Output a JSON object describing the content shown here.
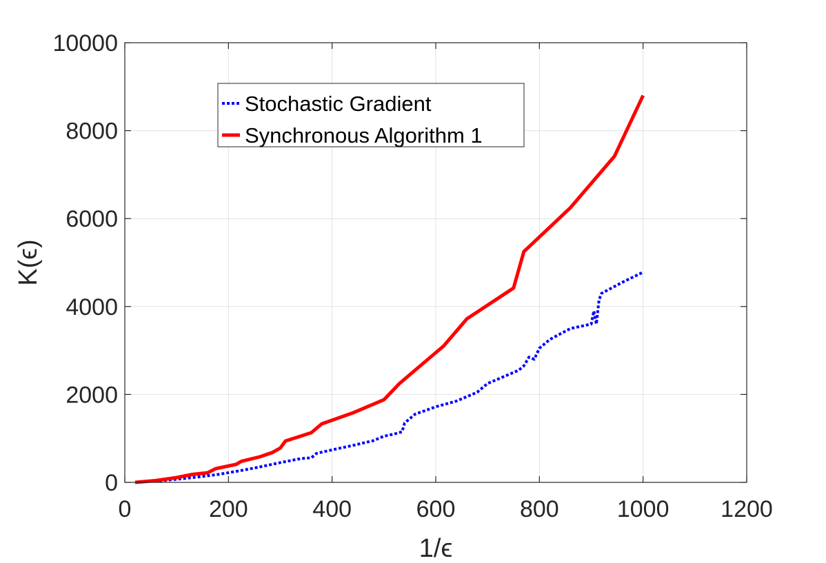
{
  "chart_data": {
    "type": "line",
    "xlabel": "1/ϵ",
    "ylabel": "K(ϵ)",
    "xlim": [
      0,
      1200
    ],
    "ylim": [
      0,
      10000
    ],
    "xticks": [
      "0",
      "200",
      "400",
      "600",
      "800",
      "1000",
      "1200"
    ],
    "yticks": [
      "0",
      "2000",
      "4000",
      "6000",
      "8000",
      "10000"
    ],
    "grid": true,
    "legend_position": "upper-left",
    "series": [
      {
        "name": "Stochastic Gradient",
        "color": "#0000ff",
        "style": "dotted",
        "x": [
          20,
          60,
          100,
          140,
          180,
          220,
          260,
          300,
          340,
          360,
          370,
          400,
          440,
          480,
          500,
          520,
          535,
          540,
          560,
          600,
          640,
          680,
          690,
          700,
          760,
          770,
          780,
          790,
          800,
          820,
          860,
          900,
          905,
          910,
          915,
          920,
          960,
          1000
        ],
        "y": [
          0,
          30,
          70,
          120,
          180,
          260,
          350,
          450,
          540,
          560,
          660,
          740,
          840,
          950,
          1050,
          1100,
          1150,
          1350,
          1550,
          1720,
          1850,
          2050,
          2150,
          2250,
          2550,
          2650,
          2850,
          2800,
          3050,
          3250,
          3500,
          3600,
          3900,
          3600,
          4150,
          4300,
          4550,
          4780
        ]
      },
      {
        "name": "Synchronous Algorithm 1",
        "color": "#ff0000",
        "style": "solid",
        "x": [
          20,
          60,
          100,
          130,
          160,
          175,
          195,
          215,
          225,
          260,
          285,
          300,
          310,
          360,
          380,
          440,
          500,
          530,
          570,
          615,
          660,
          750,
          770,
          860,
          945,
          1000
        ],
        "y": [
          0,
          40,
          110,
          180,
          220,
          310,
          360,
          410,
          480,
          580,
          680,
          780,
          940,
          1130,
          1330,
          1580,
          1880,
          2250,
          2650,
          3100,
          3720,
          4420,
          5250,
          6250,
          7420,
          8800
        ]
      }
    ]
  }
}
